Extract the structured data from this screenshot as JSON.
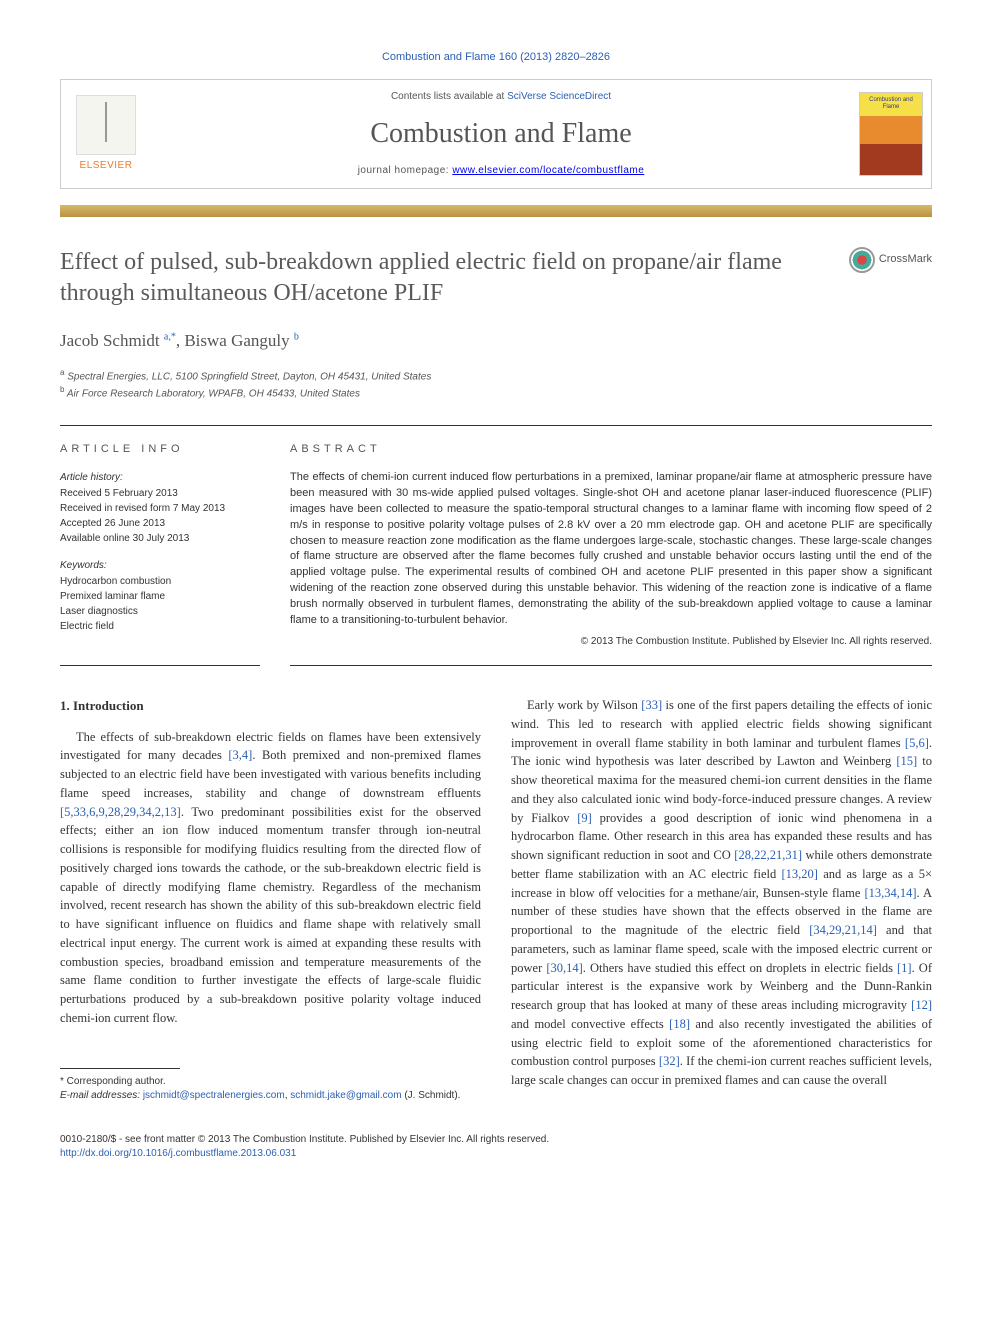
{
  "citation": "Combustion and Flame 160 (2013) 2820–2826",
  "contents_prefix": "Contents lists available at ",
  "contents_link": "SciVerse ScienceDirect",
  "journal_name": "Combustion and Flame",
  "homepage_label": "journal homepage: ",
  "homepage_url": "www.elsevier.com/locate/combustflame",
  "elsevier_label": "ELSEVIER",
  "cover_text": "Combustion and Flame",
  "crossmark_label": "CrossMark",
  "title": "Effect of pulsed, sub-breakdown applied electric field on propane/air flame through simultaneous OH/acetone PLIF",
  "authors_html": "Jacob Schmidt <sup>a,*</sup>, Biswa Ganguly <sup>b</sup>",
  "affiliations": [
    {
      "sup": "a",
      "text": "Spectral Energies, LLC, 5100 Springfield Street, Dayton, OH 45431, United States"
    },
    {
      "sup": "b",
      "text": "Air Force Research Laboratory, WPAFB, OH 45433, United States"
    }
  ],
  "info": {
    "heading": "ARTICLE INFO",
    "history_label": "Article history:",
    "history": [
      "Received 5 February 2013",
      "Received in revised form 7 May 2013",
      "Accepted 26 June 2013",
      "Available online 30 July 2013"
    ],
    "keywords_label": "Keywords:",
    "keywords": [
      "Hydrocarbon combustion",
      "Premixed laminar flame",
      "Laser diagnostics",
      "Electric field"
    ]
  },
  "abstract": {
    "heading": "ABSTRACT",
    "text": "The effects of chemi-ion current induced flow perturbations in a premixed, laminar propane/air flame at atmospheric pressure have been measured with 30 ms-wide applied pulsed voltages. Single-shot OH and acetone planar laser-induced fluorescence (PLIF) images have been collected to measure the spatio-temporal structural changes to a laminar flame with incoming flow speed of 2 m/s in response to positive polarity voltage pulses of 2.8 kV over a 20 mm electrode gap. OH and acetone PLIF are specifically chosen to measure reaction zone modification as the flame undergoes large-scale, stochastic changes. These large-scale changes of flame structure are observed after the flame becomes fully crushed and unstable behavior occurs lasting until the end of the applied voltage pulse. The experimental results of combined OH and acetone PLIF presented in this paper show a significant widening of the reaction zone observed during this unstable behavior. This widening of the reaction zone is indicative of a flame brush normally observed in turbulent flames, demonstrating the ability of the sub-breakdown applied voltage to cause a laminar flame to a transitioning-to-turbulent behavior.",
    "copyright": "© 2013 The Combustion Institute. Published by Elsevier Inc. All rights reserved."
  },
  "section1_heading": "1. Introduction",
  "col_left_p1_a": "The effects of sub-breakdown electric fields on flames have been extensively investigated for many decades ",
  "col_left_p1_ref1": "[3,4]",
  "col_left_p1_b": ". Both premixed and non-premixed flames subjected to an electric field have been investigated with various benefits including flame speed increases, stability and change of downstream effluents ",
  "col_left_p1_ref2": "[5,33,6,9,28,29,34,2,13]",
  "col_left_p1_c": ". Two predominant possibilities exist for the observed effects; either an ion flow induced momentum transfer through ion-neutral collisions is responsible for modifying fluidics resulting from the directed flow of positively charged ions towards the cathode, or the sub-breakdown electric field is capable of directly modifying flame chemistry. Regardless of the mechanism involved, recent research has shown the ability of this sub-breakdown electric field to have significant influence on fluidics and flame shape with relatively small electrical input energy. The current work is aimed at expanding these results with combustion species, broadband emission and temperature measurements of the same flame condition to further investigate the effects of large-scale fluidic perturbations produced by a sub-breakdown positive polarity voltage induced chemi-ion current flow.",
  "col_right_p1_a": "Early work by Wilson ",
  "col_right_ref_33": "[33]",
  "col_right_p1_b": " is one of the first papers detailing the effects of ionic wind. This led to research with applied electric fields showing significant improvement in overall flame stability in both laminar and turbulent flames ",
  "col_right_ref_56": "[5,6]",
  "col_right_p1_c": ". The ionic wind hypothesis was later described by Lawton and Weinberg ",
  "col_right_ref_15": "[15]",
  "col_right_p1_d": " to show theoretical maxima for the measured chemi-ion current densities in the flame and they also calculated ionic wind body-force-induced pressure changes. A review by Fialkov ",
  "col_right_ref_9": "[9]",
  "col_right_p1_e": " provides a good description of ionic wind phenomena in a hydrocarbon flame. Other research in this area has expanded these results and has shown significant reduction in soot and CO ",
  "col_right_ref_28": "[28,22,21,31]",
  "col_right_p1_f": " while others demonstrate better flame stabilization with an AC electric field ",
  "col_right_ref_1320": "[13,20]",
  "col_right_p1_g": " and as large as a 5× increase in blow off velocities for a methane/air, Bunsen-style flame ",
  "col_right_ref_133414": "[13,34,14]",
  "col_right_p1_h": ". A number of these studies have shown that the effects observed in the flame are proportional to the magnitude of the electric field ",
  "col_right_ref_3429": "[34,29,21,14]",
  "col_right_p1_i": " and that parameters, such as laminar flame speed, scale with the imposed electric current or power ",
  "col_right_ref_3014": "[30,14]",
  "col_right_p1_j": ". Others have studied this effect on droplets in electric fields ",
  "col_right_ref_1": "[1]",
  "col_right_p1_k": ". Of particular interest is the expansive work by Weinberg and the Dunn-Rankin research group that has looked at many of these areas including microgravity ",
  "col_right_ref_12": "[12]",
  "col_right_p1_l": " and model convective effects ",
  "col_right_ref_18": "[18]",
  "col_right_p1_m": " and also recently investigated the abilities of using electric field to exploit some of the aforementioned characteristics for combustion control purposes ",
  "col_right_ref_32": "[32]",
  "col_right_p1_n": ". If the chemi-ion current reaches sufficient levels, large scale changes can occur in premixed flames and can cause the overall",
  "footnotes": {
    "corresponding": "* Corresponding author.",
    "email_label": "E-mail addresses: ",
    "email1": "jschmidt@spectralenergies.com",
    "email2": "schmidt.jake@gmail.com",
    "email_tail": " (J. Schmidt)."
  },
  "footer": {
    "line1": "0010-2180/$ - see front matter © 2013 The Combustion Institute. Published by Elsevier Inc. All rights reserved.",
    "doi": "http://dx.doi.org/10.1016/j.combustflame.2013.06.031"
  },
  "colors": {
    "link": "#2b5fb3",
    "elsevier_orange": "#eb7b2d",
    "text_gray": "#555555",
    "gold_top": "#d8b96a",
    "gold_bottom": "#b8923f"
  }
}
